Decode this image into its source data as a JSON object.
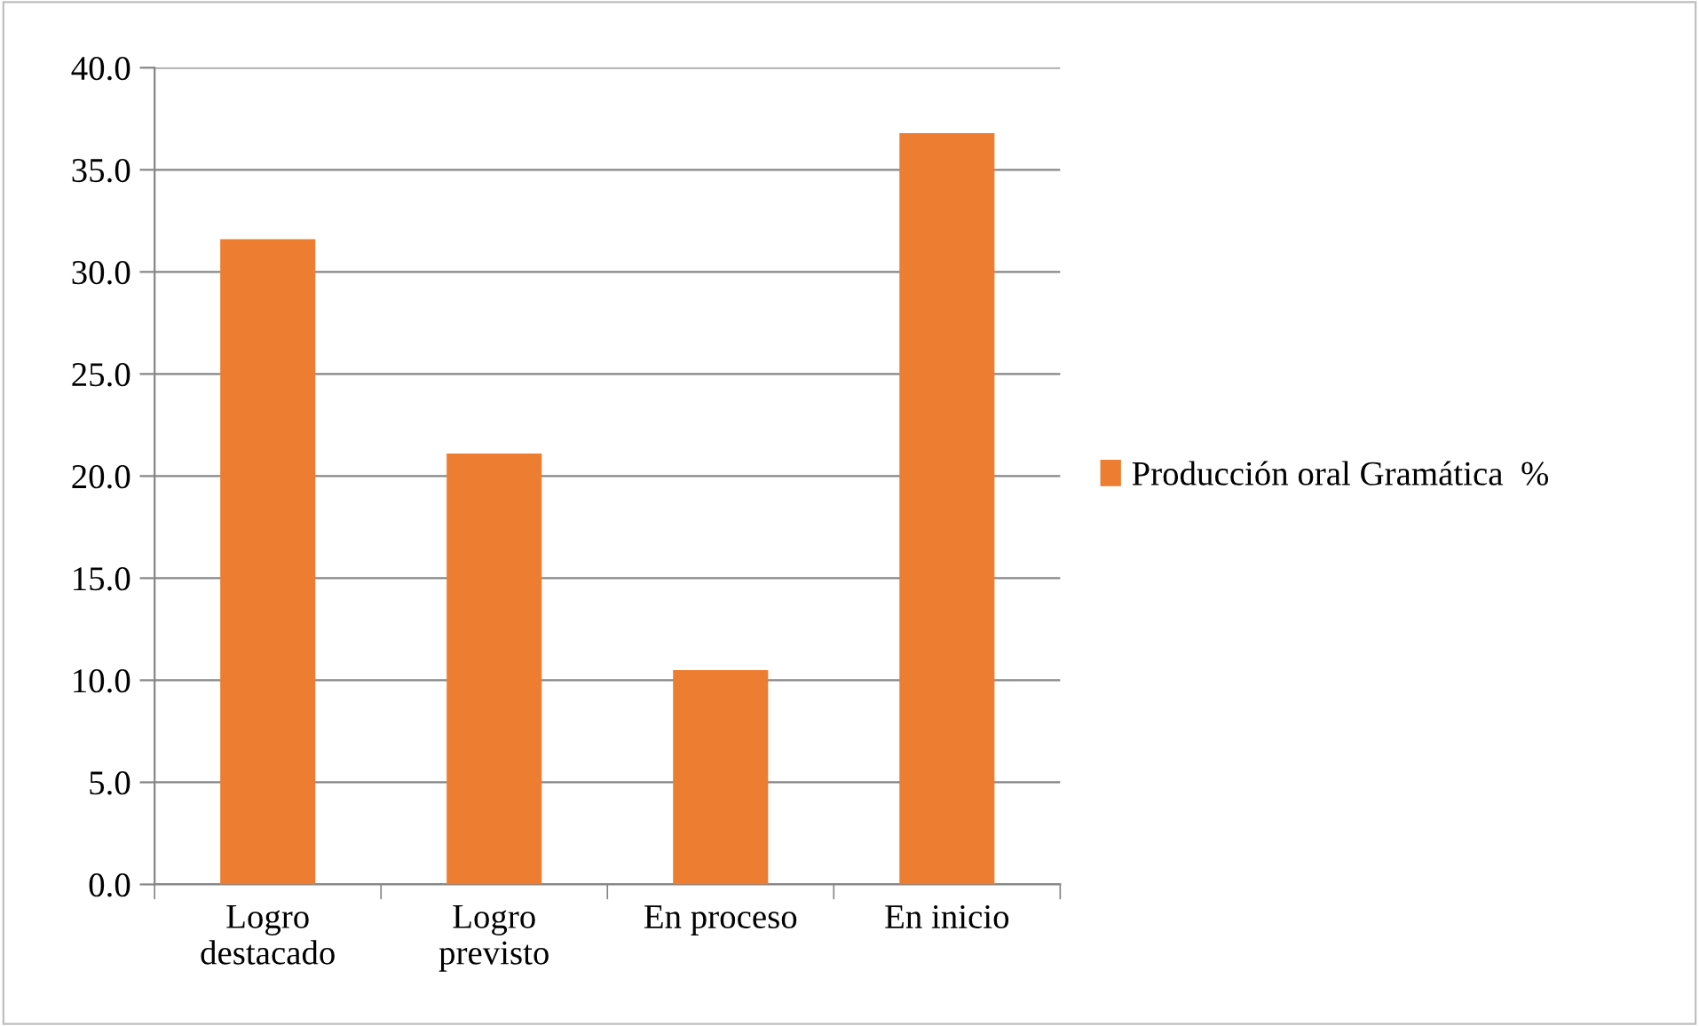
{
  "chart_data": {
    "type": "bar",
    "categories": [
      "Logro\ndestacado",
      "Logro\nprevisto",
      "En proceso",
      "En inicio"
    ],
    "series": [
      {
        "name": "Producción oral Gramática  %",
        "color": "#ed7d31",
        "values": [
          31.6,
          21.1,
          10.5,
          36.8
        ]
      }
    ],
    "ylim": [
      0,
      40
    ],
    "yticks": [
      {
        "value": 0,
        "label": "0.0"
      },
      {
        "value": 5,
        "label": "5.0"
      },
      {
        "value": 10,
        "label": "10.0"
      },
      {
        "value": 15,
        "label": "15.0"
      },
      {
        "value": 20,
        "label": "20.0"
      },
      {
        "value": 25,
        "label": "25.0"
      },
      {
        "value": 30,
        "label": "30.0"
      },
      {
        "value": 35,
        "label": "35.0"
      },
      {
        "value": 40,
        "label": "40.0"
      }
    ],
    "grid": "y",
    "legend": "right"
  }
}
